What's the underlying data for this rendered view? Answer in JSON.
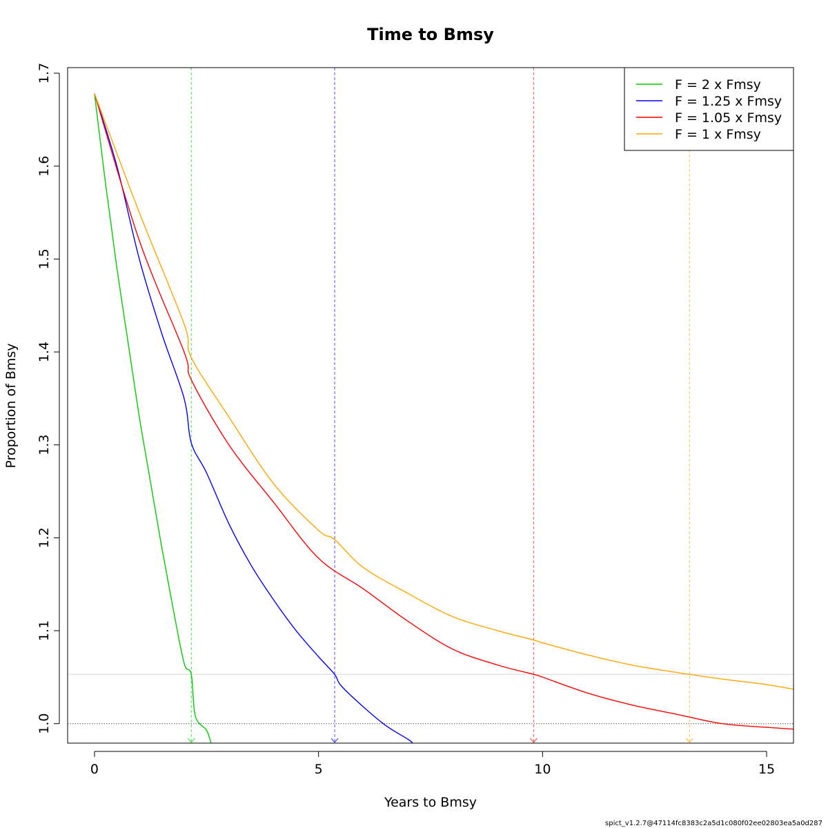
{
  "chart_data": {
    "type": "line",
    "title": "Time to Bmsy",
    "xlabel": "Years to Bmsy",
    "ylabel": "Proportion of Bmsy",
    "xlim": [
      -0.6,
      15.6
    ],
    "ylim": [
      0.979,
      1.706
    ],
    "x_ticks": [
      0,
      5,
      10,
      15
    ],
    "y_ticks": [
      1.0,
      1.1,
      1.2,
      1.3,
      1.4,
      1.5,
      1.6,
      1.7
    ],
    "x_tick_labels": [
      "0",
      "5",
      "10",
      "15"
    ],
    "y_tick_labels": [
      "1.0",
      "1.1",
      "1.2",
      "1.3",
      "1.4",
      "1.5",
      "1.6",
      "1.7"
    ],
    "grid": false,
    "legend_position": "top-right",
    "start_value": 1.678,
    "series": [
      {
        "name": "F = 2 x Fmsy",
        "color": "#00cd00",
        "x": [
          0,
          0.25,
          0.5,
          0.75,
          1.0,
          1.25,
          1.5,
          1.75,
          2.0,
          2.16,
          2.25,
          2.5,
          2.6
        ],
        "y": [
          1.678,
          1.58,
          1.49,
          1.41,
          1.33,
          1.26,
          1.19,
          1.125,
          1.065,
          1.053,
          1.008,
          0.993,
          0.979
        ],
        "arrival_year": 2.16
      },
      {
        "name": "F = 1.25 x Fmsy",
        "color": "#0000ff",
        "x": [
          0,
          0.5,
          1.0,
          1.5,
          2.0,
          2.16,
          2.5,
          3.0,
          3.5,
          4.0,
          4.5,
          5.0,
          5.36,
          5.5,
          6.0,
          6.5,
          7.0,
          7.1
        ],
        "y": [
          1.678,
          1.6,
          1.5,
          1.42,
          1.35,
          1.302,
          1.27,
          1.215,
          1.17,
          1.133,
          1.1,
          1.072,
          1.053,
          1.041,
          1.018,
          0.998,
          0.983,
          0.979
        ],
        "arrival_year": 5.36
      },
      {
        "name": "F = 1.05 x Fmsy",
        "color": "#ff0000",
        "x": [
          0,
          1,
          2,
          2.16,
          3,
          4,
          5,
          6,
          7,
          8,
          9,
          9.8,
          10,
          11,
          12,
          13,
          14,
          15,
          15.6
        ],
        "y": [
          1.678,
          1.52,
          1.4,
          1.37,
          1.3,
          1.238,
          1.178,
          1.145,
          1.11,
          1.08,
          1.063,
          1.053,
          1.05,
          1.033,
          1.02,
          1.01,
          1.0,
          0.996,
          0.994
        ],
        "arrival_year": 9.8
      },
      {
        "name": "F = 1 x Fmsy",
        "color": "#ffa500",
        "x": [
          0,
          1,
          2,
          2.16,
          3,
          4,
          5,
          5.36,
          6,
          7,
          8,
          9,
          9.8,
          10,
          11,
          12,
          13,
          13.28,
          14,
          15,
          15.6
        ],
        "y": [
          1.678,
          1.55,
          1.43,
          1.394,
          1.33,
          1.258,
          1.208,
          1.198,
          1.168,
          1.14,
          1.115,
          1.1,
          1.09,
          1.087,
          1.074,
          1.063,
          1.055,
          1.053,
          1.048,
          1.042,
          1.037
        ],
        "arrival_year": 13.28
      }
    ],
    "reference_lines": {
      "bmsy_level": 1.0,
      "target_level": 1.053
    },
    "footnote": "spict_v1.2.7@47114fc8383c2a5d1c080f02ee02803ea5a0d287"
  }
}
